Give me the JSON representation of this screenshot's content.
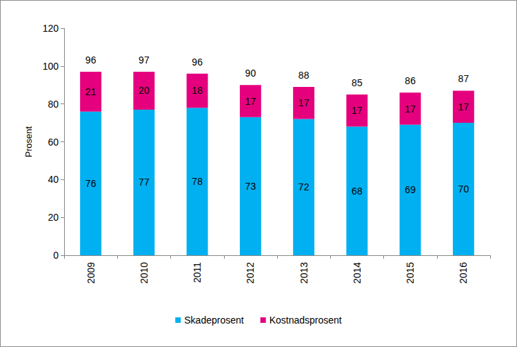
{
  "chart_data": {
    "type": "bar",
    "stacked": true,
    "data_labels": true,
    "grid": false,
    "legend": "bottom",
    "y_label": "Prosent",
    "categories": [
      "2009",
      "2010",
      "2011",
      "2012",
      "2013",
      "2014",
      "2015",
      "2016"
    ],
    "series": [
      {
        "name": "Skadeprosent",
        "color": "#00b0f0",
        "values": [
          76,
          77,
          78,
          73,
          72,
          68,
          69,
          70
        ]
      },
      {
        "name": "Kostnadsprosent",
        "color": "#e5007d",
        "values": [
          21,
          20,
          18,
          17,
          17,
          17,
          17,
          17
        ]
      }
    ],
    "totals": [
      96,
      97,
      96,
      90,
      88,
      85,
      86,
      87
    ],
    "ylim": [
      0,
      120
    ],
    "yticks": [
      0,
      20,
      40,
      60,
      80,
      100,
      120
    ]
  }
}
